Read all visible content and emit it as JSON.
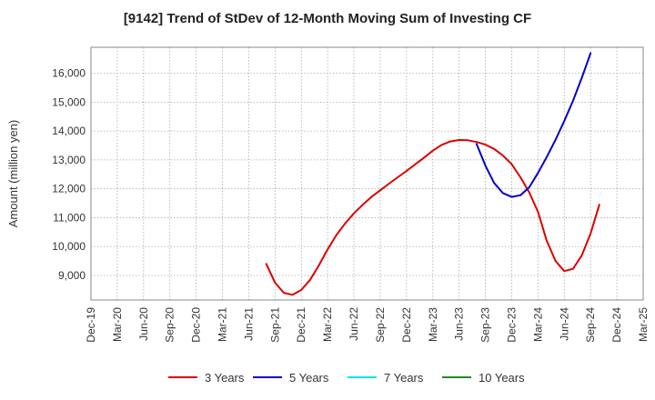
{
  "chart_data": {
    "type": "line",
    "title": "[9142]  Trend of StDev of 12-Month Moving Sum of Investing CF",
    "ylabel": "Amount (million yen)",
    "xlabel": "",
    "x_ticks": [
      "Dec-19",
      "Mar-20",
      "Jun-20",
      "Sep-20",
      "Dec-20",
      "Mar-21",
      "Jun-21",
      "Sep-21",
      "Dec-21",
      "Mar-22",
      "Jun-22",
      "Sep-22",
      "Dec-22",
      "Mar-23",
      "Jun-23",
      "Sep-23",
      "Dec-23",
      "Mar-24",
      "Jun-24",
      "Sep-24",
      "Dec-24",
      "Mar-25"
    ],
    "y_ticks": [
      9000,
      10000,
      11000,
      12000,
      13000,
      14000,
      15000,
      16000
    ],
    "y_tick_labels": [
      "9,000",
      "10,000",
      "11,000",
      "12,000",
      "13,000",
      "14,000",
      "15,000",
      "16,000"
    ],
    "xlim": [
      "Dec-19",
      "Mar-25"
    ],
    "ylim": [
      8150,
      16900
    ],
    "grid": true,
    "legend_position": "bottom",
    "series": [
      {
        "name": "3 Years",
        "color": "#dd0000",
        "points": [
          [
            "Aug-21",
            9400
          ],
          [
            "Sep-21",
            8750
          ],
          [
            "Oct-21",
            8400
          ],
          [
            "Nov-21",
            8330
          ],
          [
            "Dec-21",
            8500
          ],
          [
            "Jan-22",
            8850
          ],
          [
            "Feb-22",
            9350
          ],
          [
            "Mar-22",
            9900
          ],
          [
            "Apr-22",
            10400
          ],
          [
            "May-22",
            10800
          ],
          [
            "Jun-22",
            11150
          ],
          [
            "Jul-22",
            11450
          ],
          [
            "Aug-22",
            11720
          ],
          [
            "Sep-22",
            11950
          ],
          [
            "Oct-22",
            12180
          ],
          [
            "Nov-22",
            12400
          ],
          [
            "Dec-22",
            12620
          ],
          [
            "Jan-23",
            12850
          ],
          [
            "Feb-23",
            13080
          ],
          [
            "Mar-23",
            13320
          ],
          [
            "Apr-23",
            13520
          ],
          [
            "May-23",
            13640
          ],
          [
            "Jun-23",
            13690
          ],
          [
            "Jul-23",
            13680
          ],
          [
            "Aug-23",
            13620
          ],
          [
            "Sep-23",
            13530
          ],
          [
            "Oct-23",
            13380
          ],
          [
            "Nov-23",
            13150
          ],
          [
            "Dec-23",
            12850
          ],
          [
            "Jan-24",
            12400
          ],
          [
            "Feb-24",
            11880
          ],
          [
            "Mar-24",
            11200
          ],
          [
            "Apr-24",
            10200
          ],
          [
            "May-24",
            9500
          ],
          [
            "Jun-24",
            9150
          ],
          [
            "Jul-24",
            9230
          ],
          [
            "Aug-24",
            9700
          ],
          [
            "Sep-24",
            10450
          ],
          [
            "Oct-24",
            11450
          ]
        ]
      },
      {
        "name": "5 Years",
        "color": "#0000cc",
        "points": [
          [
            "Aug-23",
            13550
          ],
          [
            "Sep-23",
            12800
          ],
          [
            "Oct-23",
            12200
          ],
          [
            "Nov-23",
            11850
          ],
          [
            "Dec-23",
            11720
          ],
          [
            "Jan-24",
            11780
          ],
          [
            "Feb-24",
            12050
          ],
          [
            "Mar-24",
            12550
          ],
          [
            "Apr-24",
            13100
          ],
          [
            "May-24",
            13700
          ],
          [
            "Jun-24",
            14350
          ],
          [
            "Jul-24",
            15050
          ],
          [
            "Aug-24",
            15850
          ],
          [
            "Sep-24",
            16700
          ]
        ]
      },
      {
        "name": "7 Years",
        "color": "#00e5ee",
        "points": []
      },
      {
        "name": "10 Years",
        "color": "#228b22",
        "points": []
      }
    ]
  }
}
